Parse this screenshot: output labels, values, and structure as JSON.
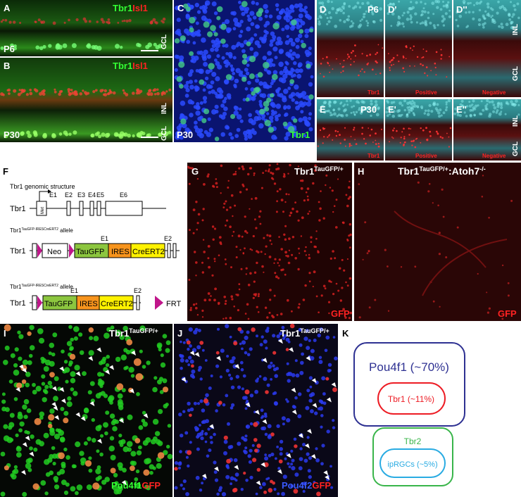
{
  "panel_a": {
    "label": "A",
    "marker_1": "Tbr1",
    "marker_2": "Isl1",
    "age": "P6",
    "layer": "GCL"
  },
  "panel_b": {
    "label": "B",
    "marker_1": "Tbr1",
    "marker_2": "Isl1",
    "age": "P30",
    "layer_1": "INL",
    "layer_2": "GCL"
  },
  "panel_c": {
    "label": "C",
    "age": "P30",
    "marker": "Tbr1"
  },
  "panel_d": {
    "label": "D",
    "age": "P6",
    "marker": "Tbr1"
  },
  "panel_d_prime": {
    "label": "D'",
    "text": "Positive"
  },
  "panel_d_double": {
    "label": "D''",
    "text": "Negative",
    "layer_1": "INL",
    "layer_2": "GCL"
  },
  "panel_e": {
    "label": "E",
    "age": "P30",
    "marker": "Tbr1"
  },
  "panel_e_prime": {
    "label": "E'",
    "text": "Positive"
  },
  "panel_e_double": {
    "label": "E''",
    "text": "Negative",
    "layer_1": "INL",
    "layer_2": "GCL"
  },
  "panel_f": {
    "label": "F",
    "genomic_title": "Tbr1 genomic structure",
    "gene": "Tbr1",
    "start": "Met",
    "exons": [
      "E1",
      "E2",
      "E3",
      "E4",
      "E5",
      "E6"
    ],
    "allele_1": {
      "base": "Tbr1",
      "sup": "TauGFP-IRESCreERT2",
      "suffix": " allele",
      "gene": "Tbr1",
      "neo": "Neo",
      "taugfp": "TauGFP",
      "ires": "IRES",
      "creert2": "CreERT2",
      "exon_1": "E1",
      "exon_2": "E2"
    },
    "allele_2": {
      "base": "Tbr1",
      "sup": "TauGFP-IRESCreERT2",
      "suffix": " allele",
      "gene": "Tbr1",
      "taugfp": "TauGFP",
      "ires": "IRES",
      "creert2": "CreERT2",
      "exon_1": "E1",
      "exon_2": "E2",
      "frt": "FRT"
    }
  },
  "panel_g": {
    "label": "G",
    "genotype": {
      "base": "Tbr1",
      "sup": "TauGFP/+"
    },
    "marker": "GFP"
  },
  "panel_h": {
    "label": "H",
    "genotype": {
      "base": "Tbr1",
      "sup": "TauGFP/+",
      "middle": ":Atoh7",
      "sup_2": "-/-"
    },
    "marker": "GFP"
  },
  "panel_i": {
    "label": "I",
    "genotype": {
      "base": "Tbr1",
      "sup": "TauGFP/+"
    },
    "marker_1": "Pou4f1",
    "marker_2": "GFP"
  },
  "panel_j": {
    "label": "J",
    "genotype": {
      "base": "Tbr1",
      "sup": "TauGFP/+"
    },
    "marker_1": "Pou4f2",
    "marker_2": "GFP"
  },
  "panel_k": {
    "label": "K",
    "outer": "Pou4f1 (~70%)",
    "inner": "Tbr1 (~11%)",
    "outer_2": "Tbr2",
    "inner_2": "ipRGCs (~5%)"
  }
}
